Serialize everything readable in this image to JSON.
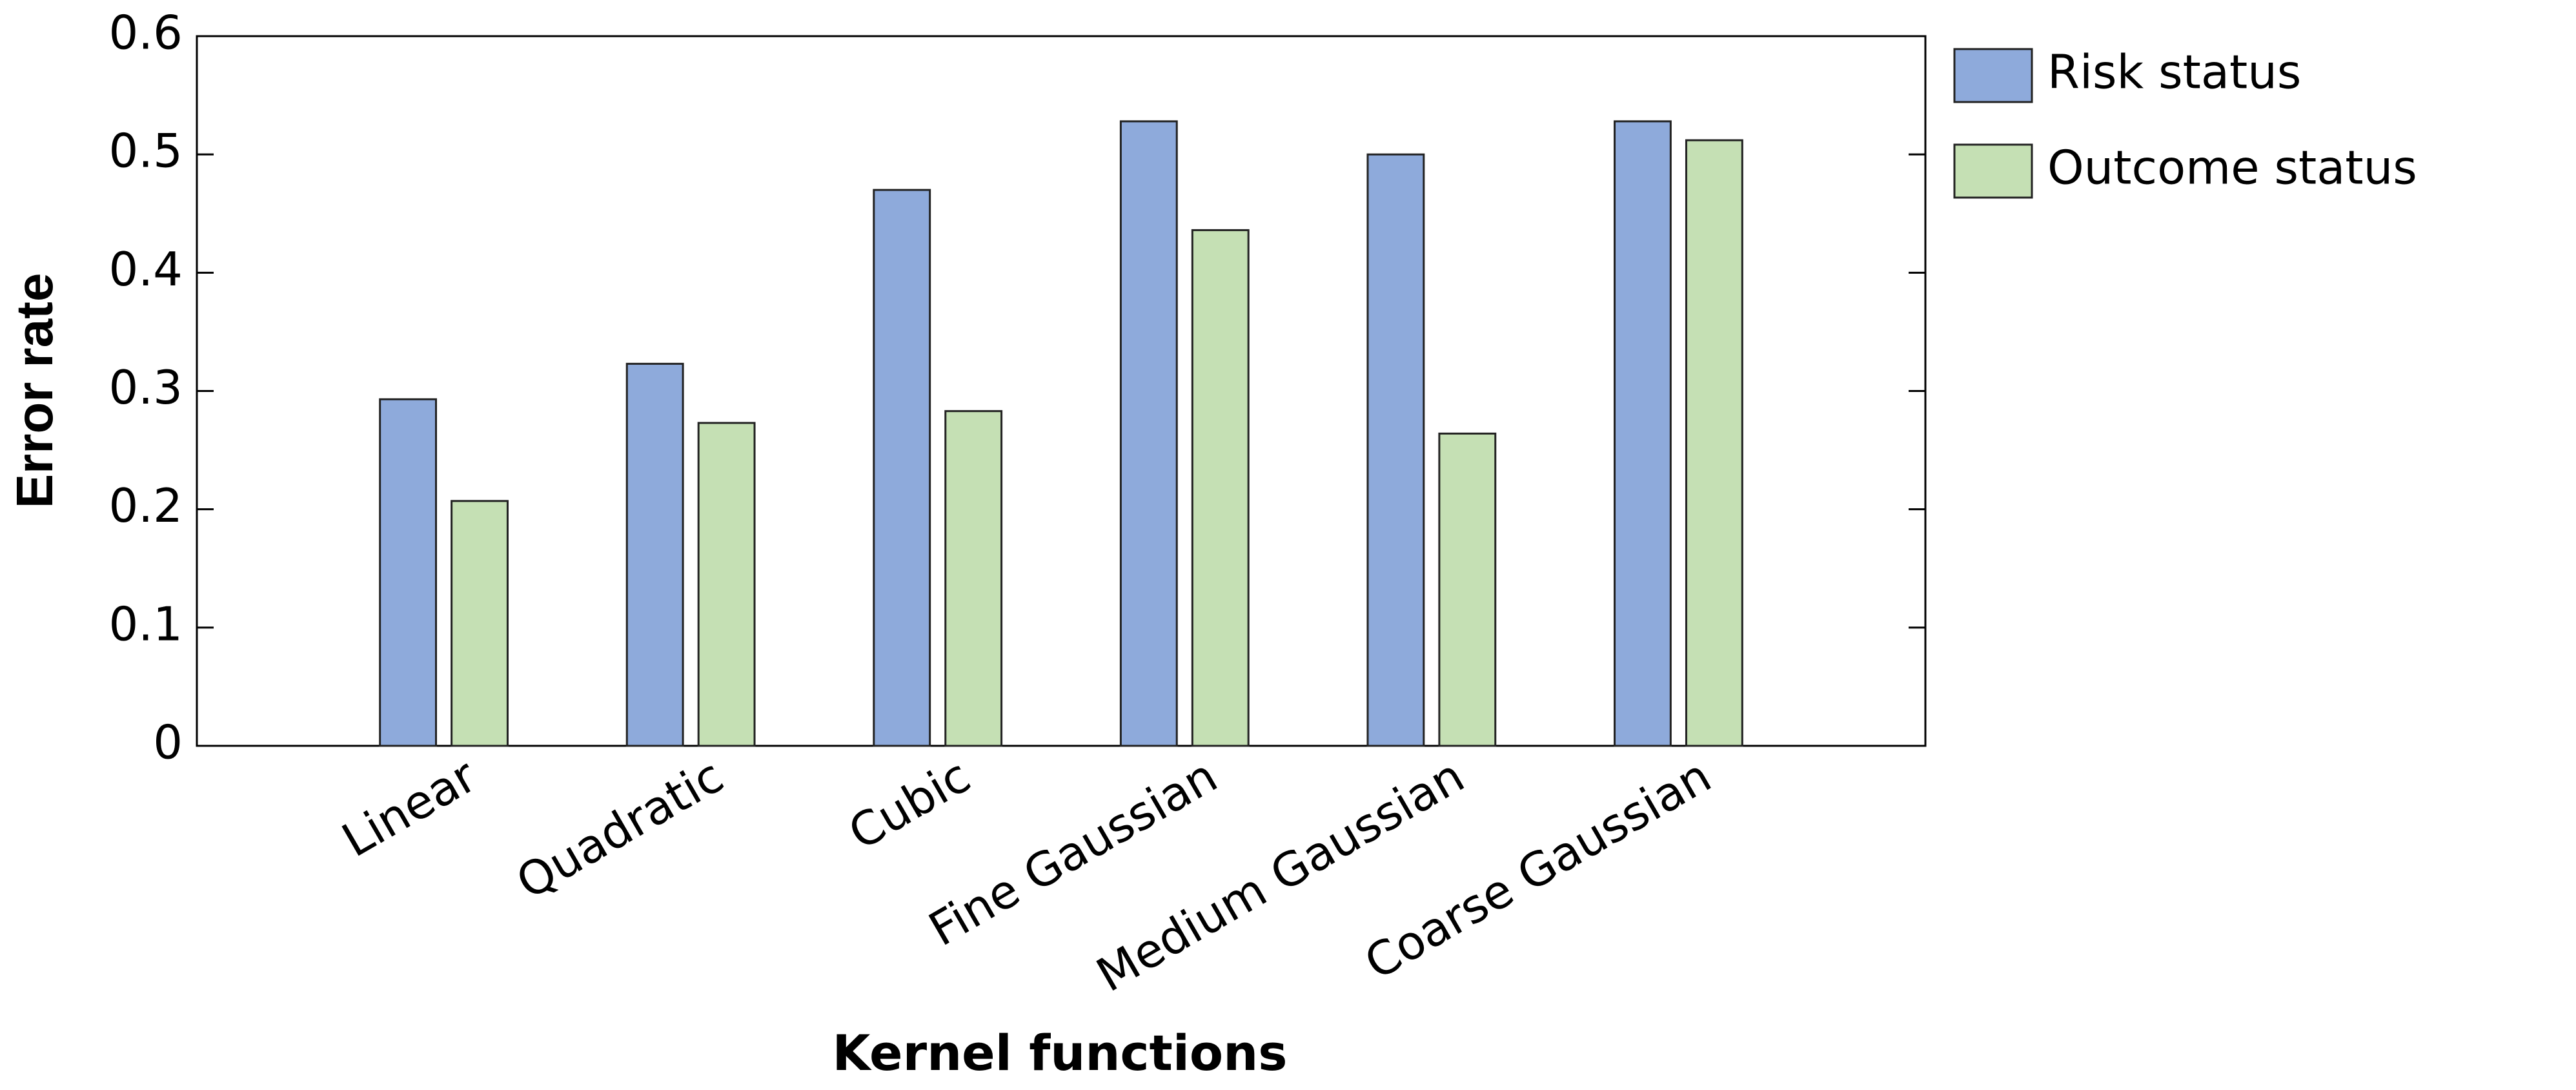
{
  "chart_data": {
    "type": "bar",
    "x_label": "Kernel functions",
    "y_label": "Error rate",
    "categories": [
      "Linear",
      "Quadratic",
      "Cubic",
      "Fine Gaussian",
      "Medium Gaussian",
      "Coarse Gaussian"
    ],
    "series": [
      {
        "name": "Risk status",
        "color": "#8eaadb",
        "values": [
          0.293,
          0.323,
          0.47,
          0.528,
          0.5,
          0.528
        ]
      },
      {
        "name": "Outcome status",
        "color": "#c5e0b4",
        "values": [
          0.207,
          0.273,
          0.283,
          0.436,
          0.264,
          0.512
        ]
      }
    ],
    "ylim": [
      0,
      0.6
    ],
    "yticks": [
      0,
      0.1,
      0.2,
      0.3,
      0.4,
      0.5,
      0.6
    ],
    "legend": "right"
  }
}
